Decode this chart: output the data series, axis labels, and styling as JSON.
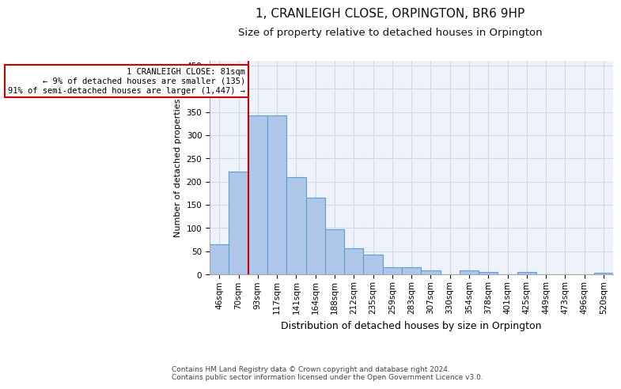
{
  "title": "1, CRANLEIGH CLOSE, ORPINGTON, BR6 9HP",
  "subtitle": "Size of property relative to detached houses in Orpington",
  "xlabel": "Distribution of detached houses by size in Orpington",
  "ylabel": "Number of detached properties",
  "categories": [
    "46sqm",
    "70sqm",
    "93sqm",
    "117sqm",
    "141sqm",
    "164sqm",
    "188sqm",
    "212sqm",
    "235sqm",
    "259sqm",
    "283sqm",
    "307sqm",
    "330sqm",
    "354sqm",
    "378sqm",
    "401sqm",
    "425sqm",
    "449sqm",
    "473sqm",
    "496sqm",
    "520sqm"
  ],
  "values": [
    65,
    222,
    343,
    343,
    210,
    165,
    97,
    57,
    42,
    15,
    15,
    8,
    0,
    8,
    5,
    0,
    5,
    0,
    0,
    0,
    3
  ],
  "bar_color": "#aec6e8",
  "bar_edge_color": "#5a9fd4",
  "grid_color": "#d0d8e8",
  "background_color": "#eef2fb",
  "marker_label_line1": "1 CRANLEIGH CLOSE: 81sqm",
  "marker_label_line2": "← 9% of detached houses are smaller (135)",
  "marker_label_line3": "91% of semi-detached houses are larger (1,447) →",
  "marker_color": "#cc0000",
  "annotation_box_color": "#ffffff",
  "annotation_box_edge": "#cc0000",
  "footer_line1": "Contains HM Land Registry data © Crown copyright and database right 2024.",
  "footer_line2": "Contains public sector information licensed under the Open Government Licence v3.0.",
  "ylim": [
    0,
    460
  ],
  "yticks": [
    0,
    50,
    100,
    150,
    200,
    250,
    300,
    350,
    400,
    450
  ],
  "title_fontsize": 11,
  "subtitle_fontsize": 9.5,
  "xlabel_fontsize": 9,
  "ylabel_fontsize": 8,
  "tick_fontsize": 7.5,
  "annotation_fontsize": 7.5,
  "footer_fontsize": 6.5
}
